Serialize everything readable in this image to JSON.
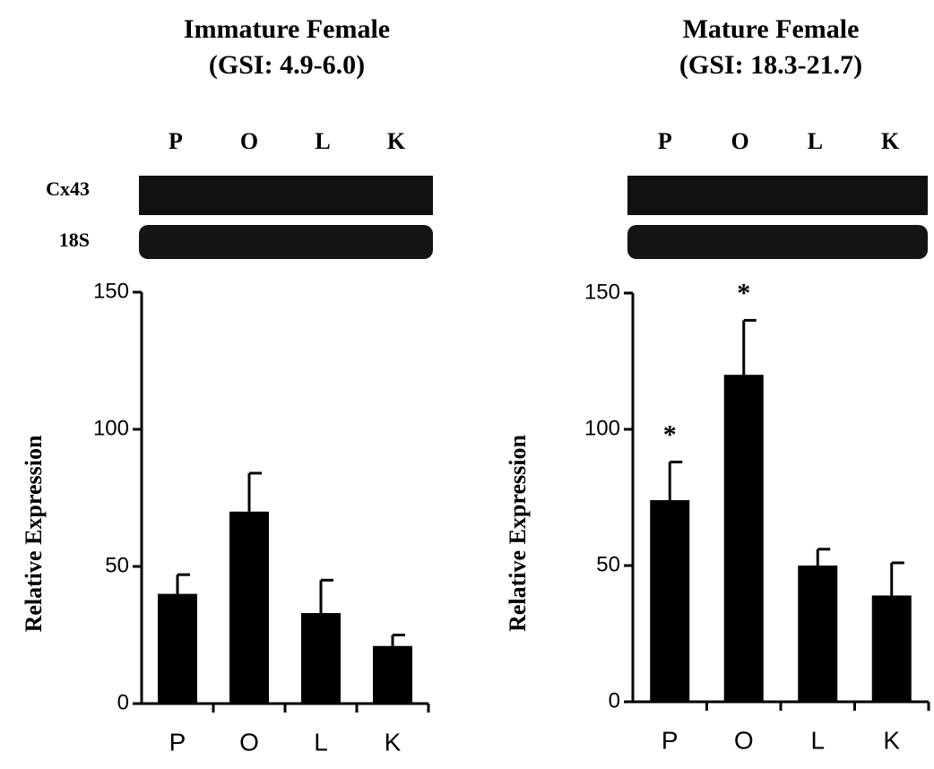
{
  "chart_data": [
    {
      "type": "bar",
      "title": "Immature Female",
      "subtitle": "(GSI: 4.9-6.0)",
      "blot_lanes": [
        "P",
        "O",
        "L",
        "K"
      ],
      "blot_rows": [
        "Cx43",
        "18S"
      ],
      "ylabel": "Relative Expression",
      "categories": [
        "P",
        "O",
        "L",
        "K"
      ],
      "values": [
        40,
        70,
        33,
        21
      ],
      "errors": [
        7,
        14,
        12,
        4
      ],
      "color": "#000000",
      "ylim": [
        0,
        150
      ],
      "yticks": [
        0,
        50,
        100,
        150
      ]
    },
    {
      "type": "bar",
      "title": "Mature Female",
      "subtitle": "(GSI: 18.3-21.7)",
      "blot_lanes": [
        "P",
        "O",
        "L",
        "K"
      ],
      "ylabel": "Relative Expression",
      "categories": [
        "P",
        "O",
        "L",
        "K"
      ],
      "values": [
        74,
        120,
        50,
        39
      ],
      "errors": [
        14,
        20,
        6,
        12
      ],
      "significance": [
        "*",
        "*",
        null,
        null
      ],
      "color": "#000000",
      "ylim": [
        0,
        150
      ],
      "yticks": [
        0,
        50,
        100,
        150
      ]
    }
  ]
}
